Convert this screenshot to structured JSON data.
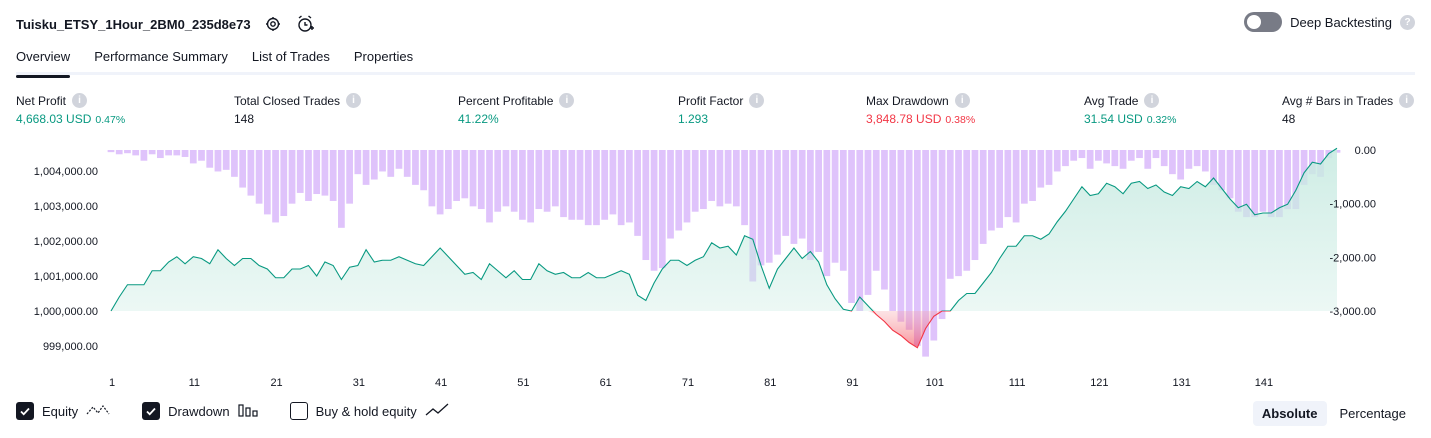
{
  "header": {
    "strategy_name": "Tuisku_ETSY_1Hour_2BM0_235d8e73",
    "settings_icon": "gear-icon",
    "alert_icon": "alarm-clock-plus-icon",
    "deep_backtesting_label": "Deep Backtesting",
    "deep_backtesting_enabled": false,
    "help_icon_text": "?"
  },
  "tabs": [
    {
      "label": "Overview",
      "active": true
    },
    {
      "label": "Performance Summary",
      "active": false
    },
    {
      "label": "List of Trades",
      "active": false
    },
    {
      "label": "Properties",
      "active": false
    }
  ],
  "metrics": [
    {
      "label": "Net Profit",
      "value": "4,668.03 USD",
      "pct": "0.47%",
      "color": "#089981"
    },
    {
      "label": "Total Closed Trades",
      "value": "148",
      "pct": "",
      "color": "#131722"
    },
    {
      "label": "Percent Profitable",
      "value": "41.22%",
      "pct": "",
      "color": "#089981"
    },
    {
      "label": "Profit Factor",
      "value": "1.293",
      "pct": "",
      "color": "#089981"
    },
    {
      "label": "Max Drawdown",
      "value": "3,848.78 USD",
      "pct": "0.38%",
      "color": "#f23645"
    },
    {
      "label": "Avg Trade",
      "value": "31.54 USD",
      "pct": "0.32%",
      "color": "#089981"
    },
    {
      "label": "Avg # Bars in Trades",
      "value": "48",
      "pct": "",
      "color": "#131722"
    }
  ],
  "legend": {
    "equity_label": "Equity",
    "drawdown_label": "Drawdown",
    "buyhold_label": "Buy & hold equity",
    "equity_checked": true,
    "drawdown_checked": true,
    "buyhold_checked": false
  },
  "mode": {
    "absolute_label": "Absolute",
    "percentage_label": "Percentage",
    "active": "absolute"
  },
  "colors": {
    "equity_line": "#089981",
    "equity_fill": "#c9ebe2",
    "equity_negative": "#f23645",
    "drawdown_bar": "#d9b8fa",
    "axis_text": "#131722",
    "accent": "#131722"
  },
  "chart_data": {
    "type": "area",
    "x_ticks": [
      "1",
      "11",
      "21",
      "31",
      "41",
      "51",
      "61",
      "71",
      "81",
      "91",
      "101",
      "111",
      "121",
      "131",
      "141"
    ],
    "left_axis_ticks": [
      "1,004,000.00",
      "1,003,000.00",
      "1,002,000.00",
      "1,001,000.00",
      "1,000,000.00",
      "999,000.00"
    ],
    "right_axis_ticks": [
      "0.00",
      "-1,000.00",
      "-2,000.00",
      "-3,000.00"
    ],
    "left_ylim": [
      998600,
      1004650
    ],
    "right_ylim": [
      -3300,
      0
    ],
    "series": [
      {
        "name": "Equity",
        "axis": "left",
        "values": [
          1000000,
          1000400,
          1000750,
          1000750,
          1000750,
          1001150,
          1001150,
          1001400,
          1001550,
          1001350,
          1001550,
          1001500,
          1001350,
          1001750,
          1001500,
          1001300,
          1001500,
          1001500,
          1001300,
          1001200,
          1000950,
          1000950,
          1001200,
          1001200,
          1001300,
          1001000,
          1001400,
          1001300,
          1000900,
          1001250,
          1001300,
          1001750,
          1001400,
          1001450,
          1001450,
          1001550,
          1001450,
          1001350,
          1001300,
          1001550,
          1001800,
          1001550,
          1001300,
          1001050,
          1001100,
          1000900,
          1001350,
          1001150,
          1000950,
          1001150,
          1000900,
          1000900,
          1001350,
          1001150,
          1001050,
          1001100,
          1000950,
          1000950,
          1001100,
          1000950,
          1000950,
          1001050,
          1001150,
          1001050,
          1000450,
          1000300,
          1000800,
          1001200,
          1001450,
          1001450,
          1001300,
          1001450,
          1001550,
          1001950,
          1001800,
          1001850,
          1001600,
          1002150,
          1002050,
          1001300,
          1000650,
          1001200,
          1001500,
          1001800,
          1001500,
          1001700,
          1001400,
          1000750,
          1000350,
          1000050,
          1000000,
          1000400,
          1000150,
          999900,
          999700,
          999450,
          999300,
          999100,
          998950,
          999500,
          999850,
          1000000,
          1000000,
          1000300,
          1000500,
          1000500,
          1000800,
          1001100,
          1001500,
          1001850,
          1001850,
          1002150,
          1002150,
          1002050,
          1002200,
          1002550,
          1002850,
          1003200,
          1003550,
          1003300,
          1003350,
          1003650,
          1003550,
          1003350,
          1003650,
          1003700,
          1003500,
          1003600,
          1003400,
          1003300,
          1003550,
          1003500,
          1003700,
          1003550,
          1003800,
          1003500,
          1003200,
          1002950,
          1003050,
          1002750,
          1002800,
          1002800,
          1002950,
          1003050,
          1003450,
          1003950,
          1004250,
          1004200,
          1004500,
          1004650
        ]
      },
      {
        "name": "Drawdown",
        "axis": "right",
        "values": [
          -40,
          -80,
          -60,
          -100,
          -200,
          -80,
          -150,
          -100,
          -100,
          -130,
          -250,
          -200,
          -330,
          -400,
          -370,
          -500,
          -700,
          -850,
          -1000,
          -1200,
          -1350,
          -1230,
          -1000,
          -800,
          -950,
          -820,
          -850,
          -950,
          -1450,
          -1000,
          -450,
          -650,
          -550,
          -400,
          -500,
          -350,
          -500,
          -650,
          -750,
          -1050,
          -1200,
          -1100,
          -950,
          -900,
          -1050,
          -1100,
          -1350,
          -1150,
          -1050,
          -1150,
          -1300,
          -1350,
          -1100,
          -1150,
          -1050,
          -1250,
          -1300,
          -1300,
          -1400,
          -1400,
          -1300,
          -1200,
          -1400,
          -1350,
          -1600,
          -2050,
          -2250,
          -2200,
          -1650,
          -1500,
          -1350,
          -1150,
          -1100,
          -950,
          -1050,
          -1000,
          -1050,
          -1400,
          -2450,
          -2150,
          -2100,
          -1950,
          -1600,
          -1750,
          -1650,
          -2050,
          -1900,
          -2350,
          -2100,
          -2250,
          -2850,
          -3000,
          -2700,
          -2250,
          -2600,
          -3000,
          -3200,
          -3350,
          -3650,
          -3850,
          -3550,
          -3150,
          -2400,
          -2350,
          -2250,
          -2050,
          -1750,
          -1500,
          -1450,
          -1250,
          -1350,
          -1000,
          -950,
          -700,
          -650,
          -400,
          -300,
          -200,
          -150,
          -350,
          -200,
          -250,
          -300,
          -350,
          -200,
          -150,
          -350,
          -150,
          -300,
          -450,
          -550,
          -350,
          -300,
          -400,
          -650,
          -750,
          -900,
          -1150,
          -1250,
          -1250,
          -1150,
          -1250,
          -1250,
          -1100,
          -1100,
          -650,
          -450,
          -500,
          -150,
          -50
        ]
      }
    ]
  }
}
